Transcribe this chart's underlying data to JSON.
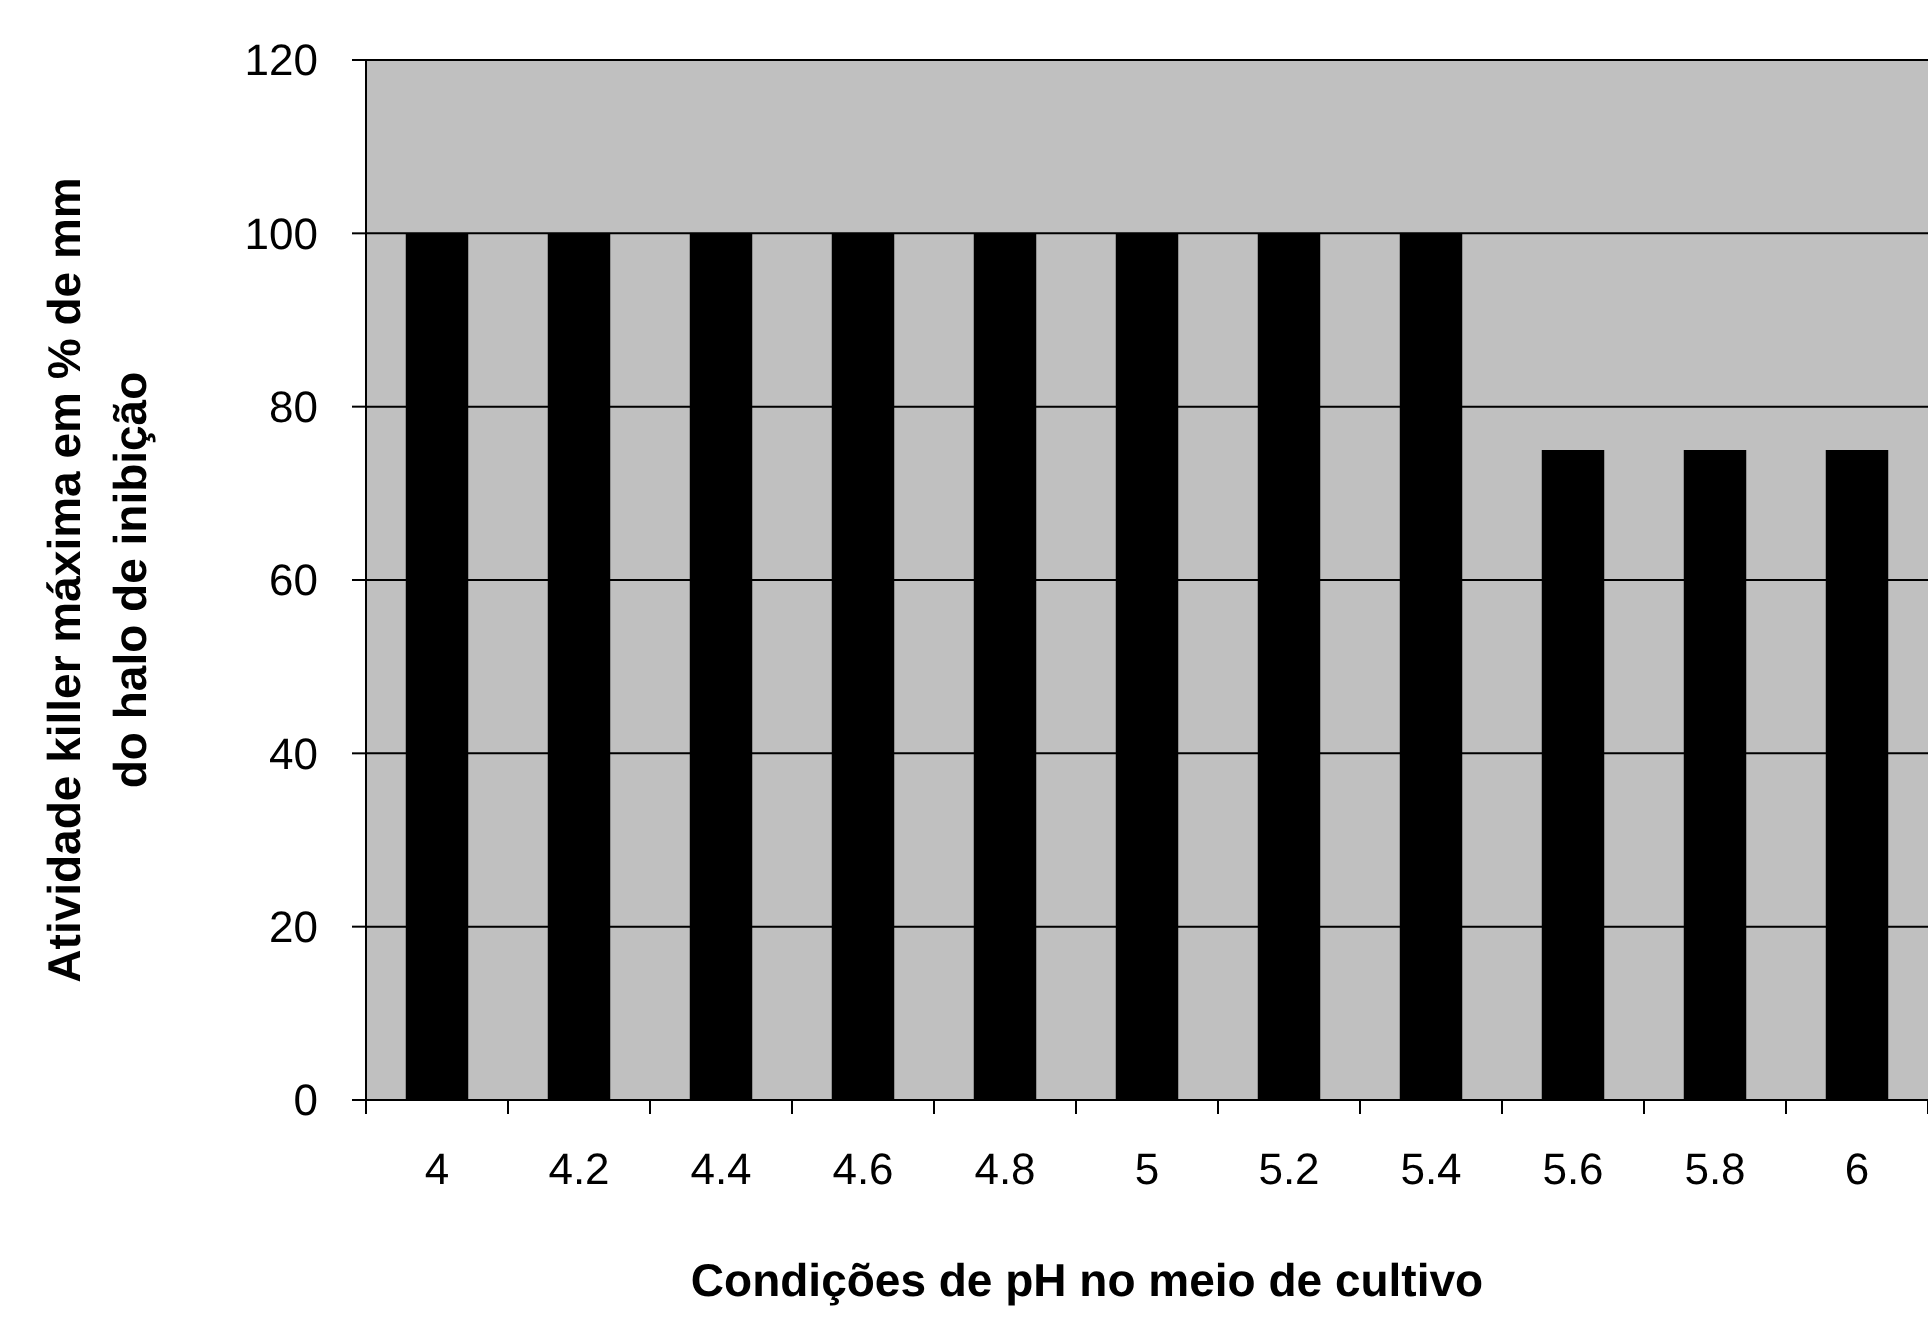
{
  "chart_data": {
    "type": "bar",
    "categories": [
      "4",
      "4.2",
      "4.4",
      "4.6",
      "4.8",
      "5",
      "5.2",
      "5.4",
      "5.6",
      "5.8",
      "6"
    ],
    "values": [
      100,
      100,
      100,
      100,
      100,
      100,
      100,
      100,
      75,
      75,
      75
    ],
    "color": "#000000",
    "xlabel": "Condições de pH no meio de cultivo",
    "ylabel": "Atividade killer máxima em % de mm\ndo halo de inibição",
    "ylim": [
      0,
      120
    ],
    "yticks": [
      0,
      20,
      40,
      60,
      80,
      100,
      120
    ],
    "grid": "y"
  }
}
